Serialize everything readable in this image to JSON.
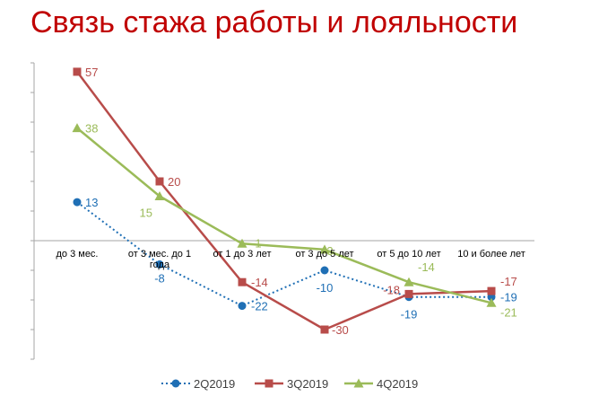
{
  "title": "Связь стажа работы и лояльности",
  "chart_data": {
    "type": "line",
    "title": "Связь стажа работы и лояльности",
    "categories": [
      "до 3 мес.",
      "от 3 мес. до 1 года",
      "от 1 до 3 лет",
      "от 3 до 5 лет",
      "от 5 до 10 лет",
      "10 и более лет"
    ],
    "series": [
      {
        "name": "2Q2019",
        "values": [
          13,
          -8,
          -22,
          -10,
          -19,
          -19
        ],
        "labels": [
          "13",
          "-8",
          "-22",
          "-10",
          "-19",
          "-19"
        ],
        "color": "#1f6fb5",
        "marker": "circle",
        "dash": "dotted"
      },
      {
        "name": "3Q2019",
        "values": [
          57,
          20,
          -14,
          -30,
          -18,
          -17
        ],
        "labels": [
          "57",
          "20",
          "-14",
          "-30",
          "-18",
          "-17"
        ],
        "color": "#b84c4a",
        "marker": "square",
        "dash": "solid"
      },
      {
        "name": "4Q2019",
        "values": [
          38,
          15,
          -1,
          -3,
          -14,
          -21
        ],
        "labels": [
          "38",
          "15",
          "-1",
          "-3",
          "-14",
          "-21"
        ],
        "color": "#9bbb59",
        "marker": "triangle",
        "dash": "solid"
      }
    ],
    "ylim": [
      -40,
      60
    ],
    "grid": false,
    "legend": "bottom"
  }
}
